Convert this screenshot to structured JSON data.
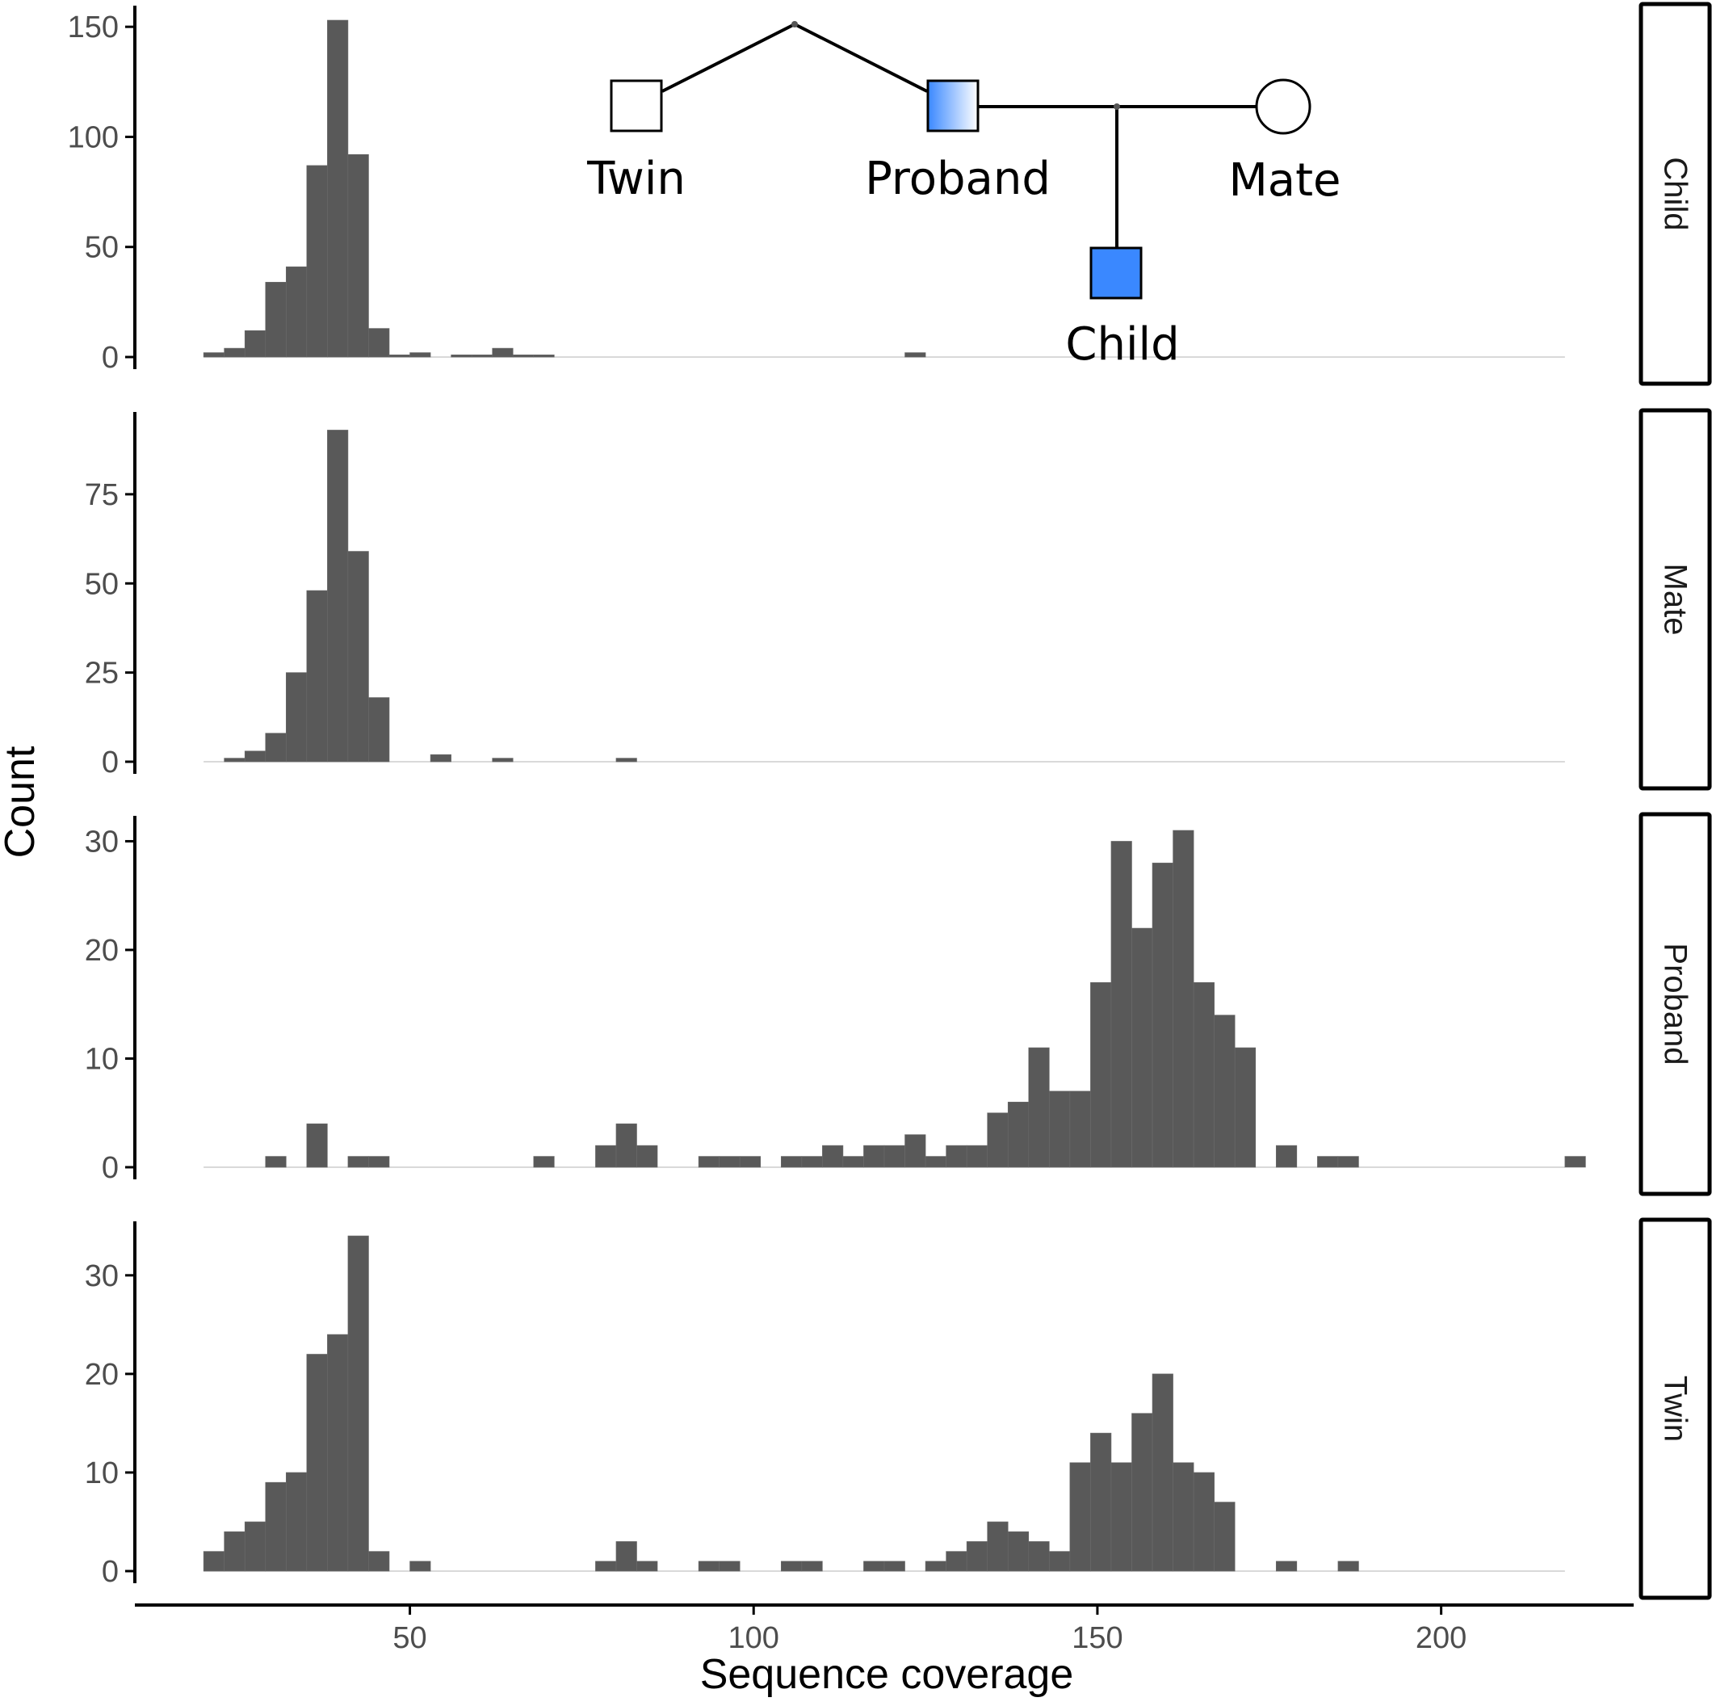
{
  "chart_data": {
    "type": "bar",
    "subtype": "faceted histogram",
    "xlabel": "Sequence coverage",
    "ylabel": "Count",
    "x_ticks": [
      50,
      100,
      150,
      200
    ],
    "x_range": [
      10,
      228
    ],
    "bin_start": 20,
    "bin_width": 3,
    "bar_color": "#595959",
    "facets": [
      {
        "name": "Child",
        "y_ticks": [
          0,
          50,
          100,
          150
        ],
        "ylim": [
          0,
          153
        ],
        "counts": [
          2,
          4,
          12,
          34,
          41,
          87,
          153,
          92,
          13,
          1,
          2,
          0,
          1,
          1,
          4,
          1,
          1,
          0,
          0,
          0,
          0,
          0,
          0,
          0,
          0,
          0,
          0,
          0,
          0,
          0,
          0,
          0,
          0,
          0,
          2
        ]
      },
      {
        "name": "Mate",
        "y_ticks": [
          0,
          25,
          50,
          75
        ],
        "ylim": [
          0,
          94
        ],
        "counts": [
          0,
          1,
          3,
          8,
          25,
          48,
          93,
          59,
          18,
          0,
          0,
          2,
          0,
          0,
          1,
          0,
          0,
          0,
          0,
          0,
          1
        ]
      },
      {
        "name": "Proband",
        "y_ticks": [
          0,
          10,
          20,
          30
        ],
        "ylim": [
          0,
          31
        ],
        "counts": [
          0,
          0,
          0,
          1,
          0,
          4,
          0,
          1,
          1,
          0,
          0,
          0,
          0,
          0,
          0,
          0,
          1,
          0,
          0,
          2,
          4,
          2,
          0,
          0,
          1,
          1,
          1,
          0,
          1,
          1,
          2,
          1,
          2,
          2,
          3,
          1,
          2,
          2,
          5,
          6,
          11,
          7,
          7,
          17,
          30,
          22,
          28,
          31,
          17,
          14,
          11,
          0,
          2,
          0,
          1,
          1,
          0,
          0,
          0,
          0,
          0,
          0,
          0,
          0,
          0,
          0,
          1
        ]
      },
      {
        "name": "Twin",
        "y_ticks": [
          0,
          10,
          20,
          30
        ],
        "ylim": [
          0,
          34
        ],
        "counts": [
          2,
          4,
          5,
          9,
          10,
          22,
          24,
          34,
          2,
          0,
          1,
          0,
          0,
          0,
          0,
          0,
          0,
          0,
          0,
          1,
          3,
          1,
          0,
          0,
          1,
          1,
          0,
          0,
          1,
          1,
          0,
          0,
          1,
          1,
          0,
          1,
          2,
          3,
          5,
          4,
          3,
          2,
          11,
          14,
          11,
          16,
          20,
          11,
          10,
          7,
          0,
          0,
          1,
          0,
          0,
          1
        ]
      }
    ],
    "inset_pedigree": {
      "members": [
        "Twin",
        "Proband",
        "Mate",
        "Child"
      ],
      "colors": {
        "affected": "#3a88ff",
        "partial_start": "#3a88ff",
        "partial_end": "#ffffff",
        "unaffected": "#ffffff"
      }
    }
  }
}
